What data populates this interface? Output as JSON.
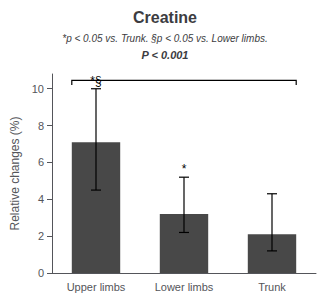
{
  "chart_data": {
    "type": "bar",
    "title": "Creatine",
    "subtitle": [
      "*p < 0.05 vs. Trunk. §p < 0.05 vs. Lower limbs.",
      "P < 0.001"
    ],
    "categories": [
      "Upper limbs",
      "Lower limbs",
      "Trunk"
    ],
    "values": [
      7.1,
      3.2,
      2.1
    ],
    "errors_up": [
      2.9,
      2.0,
      2.2
    ],
    "errors_down": [
      2.6,
      1.0,
      0.9
    ],
    "color": "#484848",
    "ylabel": "Relative changes (%)",
    "ylim": [
      0,
      10.8
    ],
    "yticks": [
      0,
      2,
      4,
      6,
      8,
      10
    ],
    "grid": false,
    "annotations": [
      {
        "category": "Upper limbs",
        "text": "*§"
      },
      {
        "category": "Lower limbs",
        "text": "*"
      }
    ],
    "bracket": {
      "y": 10.45,
      "drop": 0.25
    }
  }
}
